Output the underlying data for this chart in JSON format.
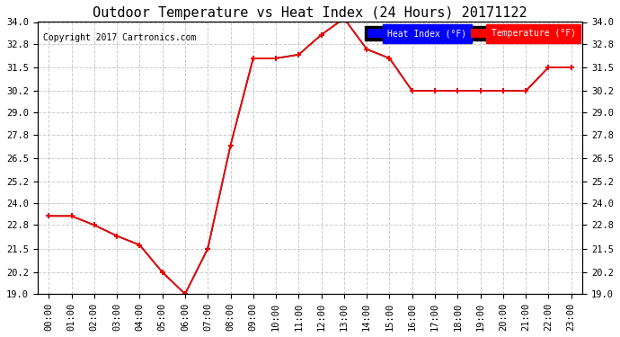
{
  "title": "Outdoor Temperature vs Heat Index (24 Hours) 20171122",
  "copyright": "Copyright 2017 Cartronics.com",
  "background_color": "#ffffff",
  "plot_bg_color": "#ffffff",
  "grid_color": "#cccccc",
  "hours": [
    "00:00",
    "01:00",
    "02:00",
    "03:00",
    "04:00",
    "05:00",
    "06:00",
    "07:00",
    "08:00",
    "09:00",
    "10:00",
    "11:00",
    "12:00",
    "13:00",
    "14:00",
    "15:00",
    "16:00",
    "17:00",
    "18:00",
    "19:00",
    "20:00",
    "21:00",
    "22:00",
    "23:00"
  ],
  "temperature": [
    23.3,
    23.3,
    22.8,
    22.2,
    21.7,
    20.2,
    19.0,
    21.5,
    27.2,
    32.0,
    32.0,
    32.2,
    33.3,
    34.2,
    32.5,
    32.0,
    30.2,
    30.2,
    30.2,
    30.2,
    30.2,
    30.2,
    31.5,
    31.5
  ],
  "heat_index": [
    23.3,
    23.3,
    22.8,
    22.2,
    21.7,
    20.2,
    19.0,
    21.5,
    27.2,
    32.0,
    32.0,
    32.2,
    33.3,
    34.2,
    32.5,
    32.0,
    30.2,
    30.2,
    30.2,
    30.2,
    30.2,
    30.2,
    31.5,
    31.5
  ],
  "temp_color": "#ff0000",
  "heat_color": "#000000",
  "marker": "+",
  "marker_size": 5,
  "line_width": 1.2,
  "ylim_min": 19.0,
  "ylim_max": 34.0,
  "yticks": [
    19.0,
    20.2,
    21.5,
    22.8,
    24.0,
    25.2,
    26.5,
    27.8,
    29.0,
    30.2,
    31.5,
    32.8,
    34.0
  ],
  "title_fontsize": 11,
  "tick_fontsize": 7.5,
  "copyright_fontsize": 7,
  "legend_heat_label": "Heat Index (°F)",
  "legend_temp_label": "Temperature (°F)",
  "legend_heat_bg": "#0000ff",
  "legend_temp_bg": "#ff0000"
}
